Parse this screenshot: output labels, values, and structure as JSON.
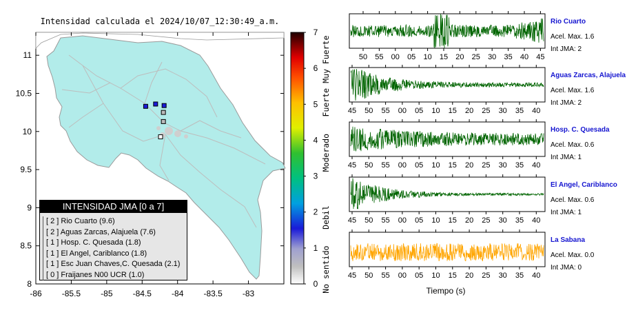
{
  "map": {
    "title": "Intensidad calculada el 2024/10/07_12:30:49_a.m.",
    "xticks": [
      "-86",
      "-85.5",
      "-85",
      "-84.5",
      "-84",
      "-83.5",
      "-83"
    ],
    "yticks": [
      "11",
      "10.5",
      "10",
      "9.5",
      "9",
      "8.5",
      "8"
    ],
    "xlim": [
      -86,
      -82.5
    ],
    "ylim": [
      8,
      11.3
    ],
    "land_color": "#b2ecea",
    "stations": [
      {
        "lon": -84.45,
        "lat": 10.33,
        "intensity": 2
      },
      {
        "lon": -84.31,
        "lat": 10.36,
        "intensity": 2
      },
      {
        "lon": -84.19,
        "lat": 10.34,
        "intensity": 2
      },
      {
        "lon": -84.2,
        "lat": 10.25,
        "intensity": 1
      },
      {
        "lon": -84.2,
        "lat": 10.13,
        "intensity": 1
      },
      {
        "lon": -84.24,
        "lat": 9.93,
        "intensity": 0
      }
    ]
  },
  "colorbar": {
    "ticks": [
      "0",
      "1",
      "2",
      "3",
      "4",
      "5",
      "6",
      "7"
    ],
    "labels": [
      "No sentido",
      "Debil",
      "Moderado",
      "Fuerte",
      "Muy Fuerte"
    ]
  },
  "legend": {
    "title": "INTENSIDAD JMA [0 a 7]",
    "items": [
      "[ 2 ] Rio Cuarto (9.6)",
      "[ 2 ] Aguas Zarcas, Alajuela (7.6)",
      "[ 1 ] Hosp. C. Quesada (1.8)",
      "[ 1 ] El Angel, Cariblanco (1.8)",
      "[ 1 ] Esc Juan Chaves,C. Quesada (2.1)",
      "[ 0 ] Fraijanes N00 UCR (1.0)"
    ]
  },
  "chart_data": {
    "type": "line",
    "x_axis_title": "Tiempo (s)",
    "panels": [
      {
        "station": "Rio Cuarto",
        "accel": "Acel. Max. 1.6",
        "int": "Int JMA: 2",
        "color": "#006400",
        "xticks": [
          "50",
          "55",
          "00",
          "05",
          "10",
          "15",
          "20",
          "25",
          "30",
          "35",
          "40",
          "45"
        ]
      },
      {
        "station": "Aguas Zarcas, Alajuela",
        "accel": "Acel. Max. 1.6",
        "int": "Int JMA: 2",
        "color": "#006400",
        "xticks": [
          "45",
          "50",
          "55",
          "00",
          "05",
          "10",
          "15",
          "20",
          "25",
          "30",
          "35",
          "40"
        ]
      },
      {
        "station": "Hosp. C. Quesada",
        "accel": "Acel. Max. 0.6",
        "int": "Int JMA: 1",
        "color": "#006400",
        "xticks": [
          "45",
          "50",
          "55",
          "00",
          "05",
          "10",
          "15",
          "20",
          "25",
          "30",
          "35",
          "40"
        ]
      },
      {
        "station": "El Angel, Cariblanco",
        "accel": "Acel. Max. 0.6",
        "int": "Int JMA: 1",
        "color": "#006400",
        "xticks": [
          "45",
          "50",
          "55",
          "00",
          "05",
          "10",
          "15",
          "20",
          "25",
          "30",
          "35",
          "40"
        ]
      },
      {
        "station": "La Sabana",
        "accel": "Acel. Max. 0.0",
        "int": "Int JMA: 0",
        "color": "#ffa500",
        "xticks": [
          "45",
          "50",
          "55",
          "00",
          "05",
          "10",
          "15",
          "20",
          "25",
          "30",
          "35",
          "40"
        ]
      }
    ]
  }
}
